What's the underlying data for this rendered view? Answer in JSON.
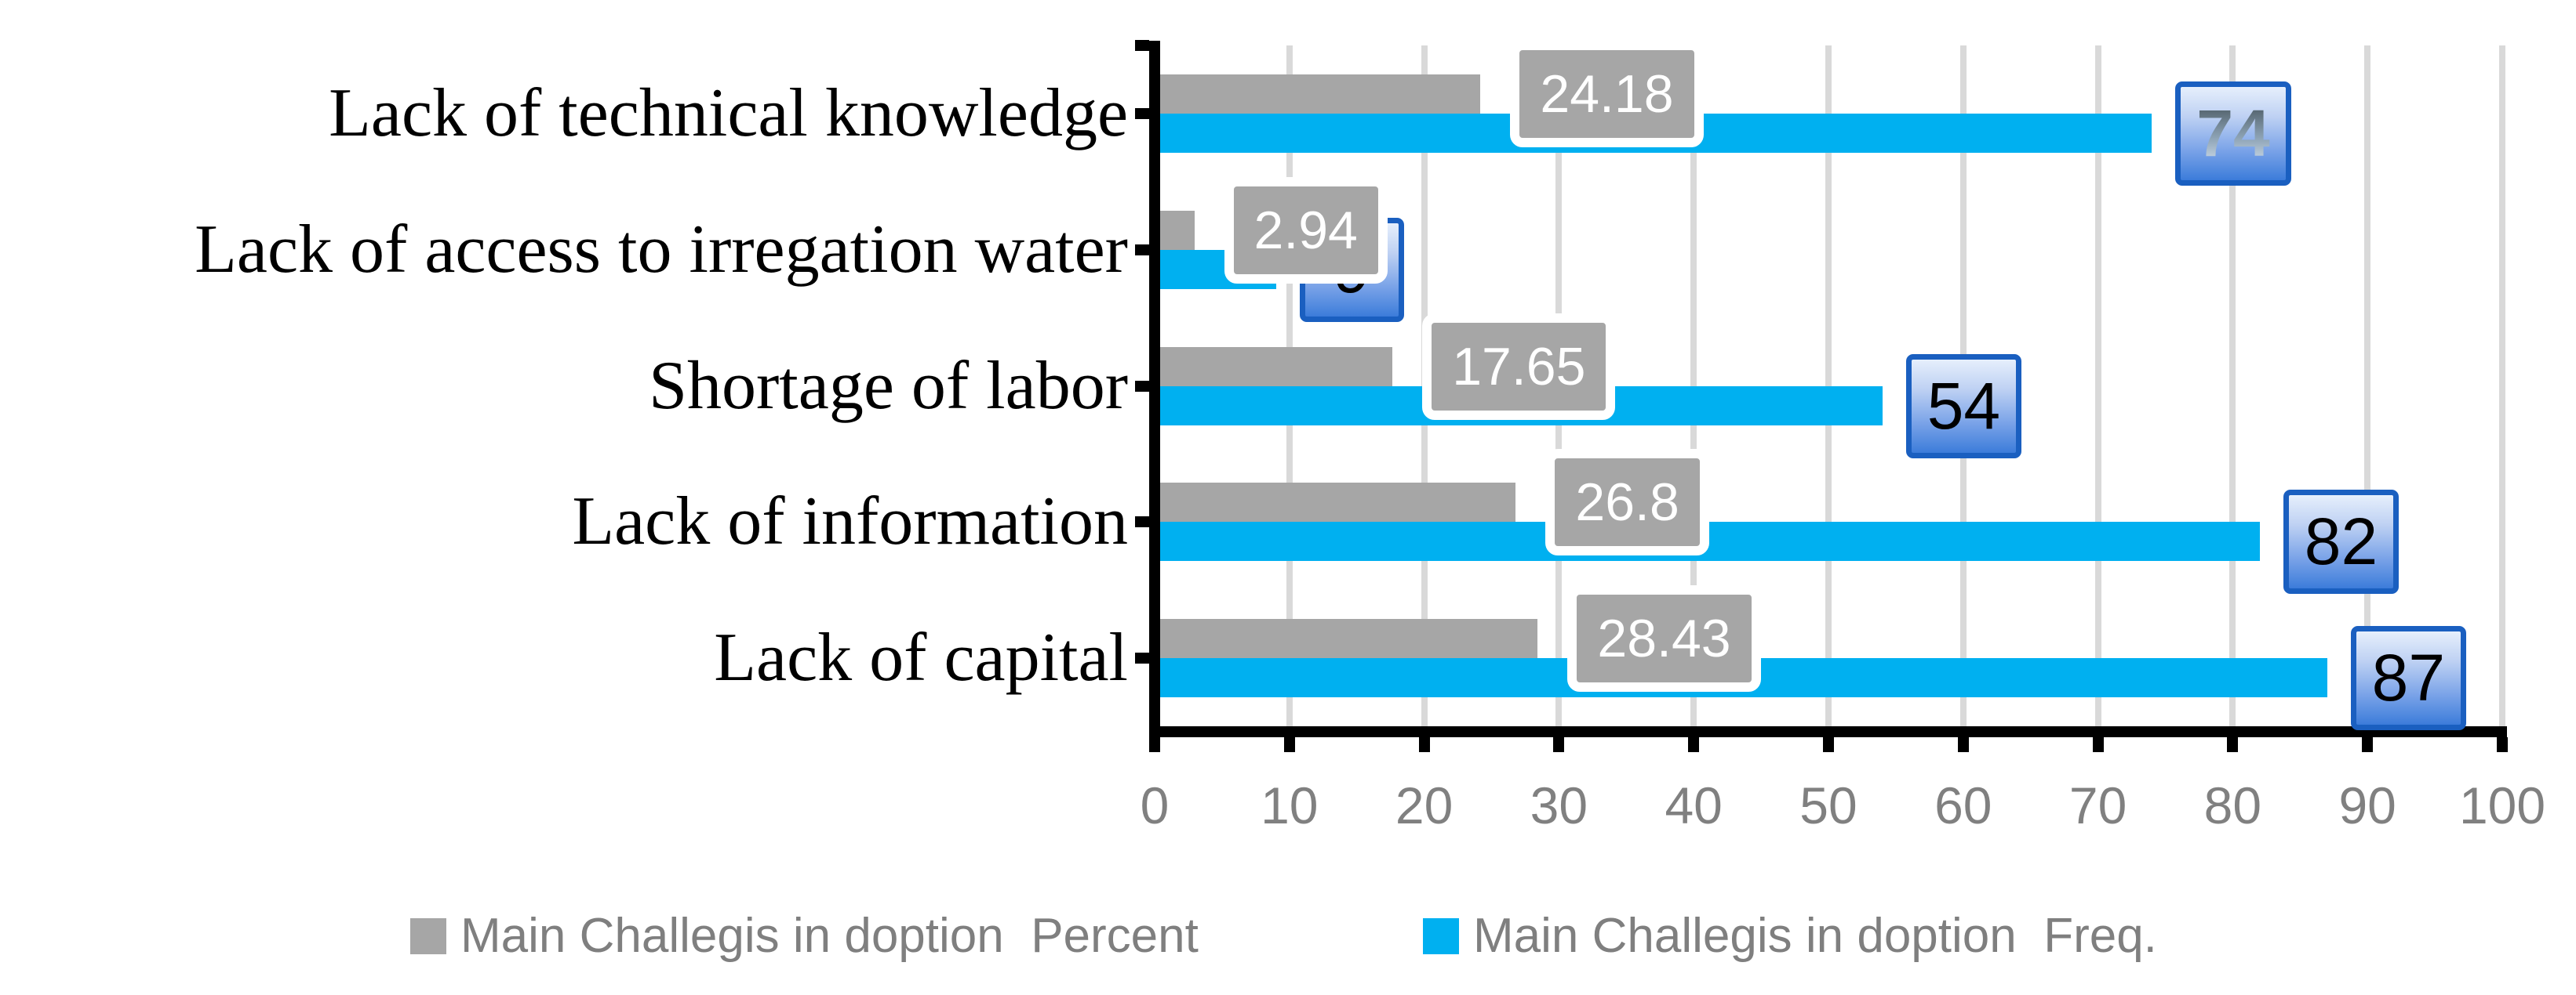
{
  "chart_data": {
    "type": "bar",
    "orientation": "horizontal",
    "title": "",
    "categories": [
      "Lack of technical knowledge",
      "Lack of access to irregation water",
      "Shortage of labor",
      "Lack of information",
      "Lack of capital"
    ],
    "series": [
      {
        "name": "Main Challegis in doption  Percent",
        "color": "#a6a6a6",
        "values": [
          24.18,
          2.94,
          17.65,
          26.8,
          28.43
        ],
        "data_labels": [
          "24.18",
          "2.94",
          "17.65",
          "26.8",
          "28.43"
        ]
      },
      {
        "name": "Main Challegis in doption  Freq.",
        "color": "#00b0f0",
        "values": [
          74,
          9,
          54,
          82,
          87
        ],
        "data_labels": [
          "74",
          "9",
          "54",
          "82",
          "87"
        ]
      }
    ],
    "xlim": [
      0,
      100
    ],
    "x_ticks": [
      "0",
      "10",
      "20",
      "30",
      "40",
      "50",
      "60",
      "70",
      "80",
      "90",
      "100"
    ],
    "grid": "vertical-major",
    "legend_position": "bottom"
  },
  "colors": {
    "percent_bar": "#a6a6a6",
    "freq_bar": "#00b0f0",
    "gridline": "#d9d9d9",
    "axis": "#000000",
    "tick_text": "#808080",
    "legend_text": "#7f7f7f",
    "percent_label_bg": "#a6a6a6",
    "percent_label_text": "#ffffff",
    "freq_label_border": "#1a5fc0",
    "freq_label_text": "#000000"
  },
  "legend": {
    "items": [
      {
        "label": "Main Challegis in doption  Percent",
        "swatch": "#a6a6a6"
      },
      {
        "label": "Main Challegis in doption  Freq.",
        "swatch": "#00b0f0"
      }
    ]
  }
}
